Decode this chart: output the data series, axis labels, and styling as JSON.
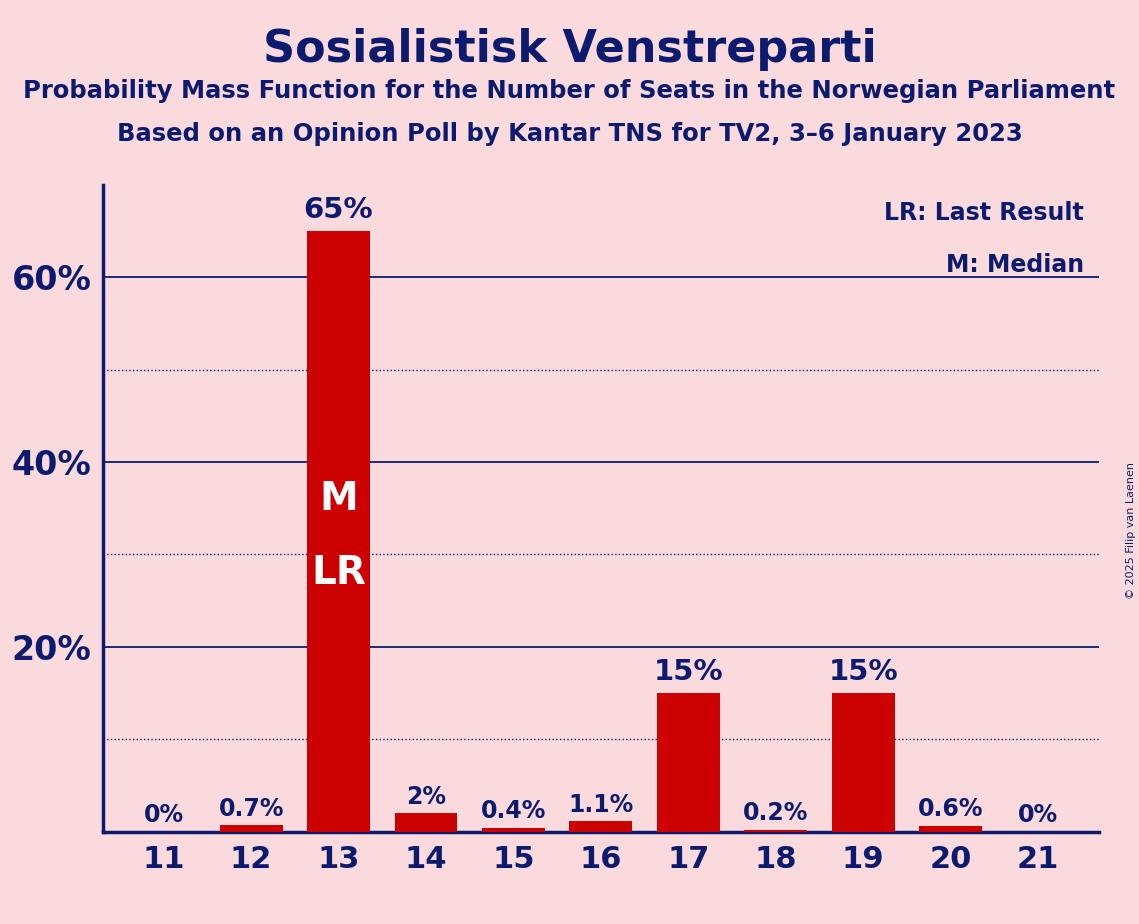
{
  "title": "Sosialistisk Venstreparti",
  "subtitle1": "Probability Mass Function for the Number of Seats in the Norwegian Parliament",
  "subtitle2": "Based on an Opinion Poll by Kantar TNS for TV2, 3–6 January 2023",
  "copyright": "© 2025 Filip van Laenen",
  "seats": [
    11,
    12,
    13,
    14,
    15,
    16,
    17,
    18,
    19,
    20,
    21
  ],
  "probabilities": [
    0.0,
    0.7,
    65.0,
    2.0,
    0.4,
    1.1,
    15.0,
    0.2,
    15.0,
    0.6,
    0.0
  ],
  "bar_labels": [
    "0%",
    "0.7%",
    "65%",
    "2%",
    "0.4%",
    "1.1%",
    "15%",
    "0.2%",
    "15%",
    "0.6%",
    "0%"
  ],
  "bar_color": "#CC0000",
  "background_color": "#FADADD",
  "text_color": "#0D1B6E",
  "median_seat": 13,
  "last_result_seat": 13,
  "legend_lr": "LR: Last Result",
  "legend_m": "M: Median",
  "solid_ticks": [
    20,
    40,
    60
  ],
  "dotted_ticks": [
    10,
    30,
    50
  ],
  "yticks_show": [
    20,
    40,
    60
  ],
  "ymax": 70
}
